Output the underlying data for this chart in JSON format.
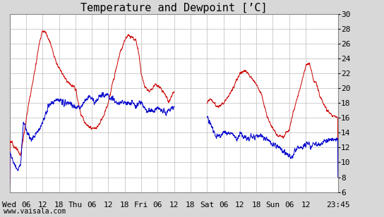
{
  "title": "Temperature and Dewpoint [’C]",
  "ylim": [
    6,
    30
  ],
  "yticks": [
    6,
    8,
    10,
    12,
    14,
    16,
    18,
    20,
    22,
    24,
    26,
    28,
    30
  ],
  "x_tick_labels": [
    "Wed",
    "06",
    "12",
    "18",
    "Thu",
    "06",
    "12",
    "18",
    "Fri",
    "06",
    "12",
    "18",
    "Sat",
    "06",
    "12",
    "18",
    "Sun",
    "06",
    "12",
    "23:45"
  ],
  "x_tick_positions": [
    0,
    6,
    12,
    18,
    24,
    30,
    36,
    42,
    48,
    54,
    60,
    66,
    72,
    78,
    84,
    90,
    96,
    102,
    108,
    119.75
  ],
  "total_hours": 119.75,
  "watermark": "www.vaisala.com",
  "bg_color": "#d8d8d8",
  "plot_bg_color": "#ffffff",
  "grid_color": "#bbbbbb",
  "temp_color": "#cc0000",
  "dew_color": "#0000cc",
  "title_fontsize": 11,
  "tick_fontsize": 8,
  "watermark_fontsize": 7,
  "gap_start": 60,
  "gap_end": 72
}
